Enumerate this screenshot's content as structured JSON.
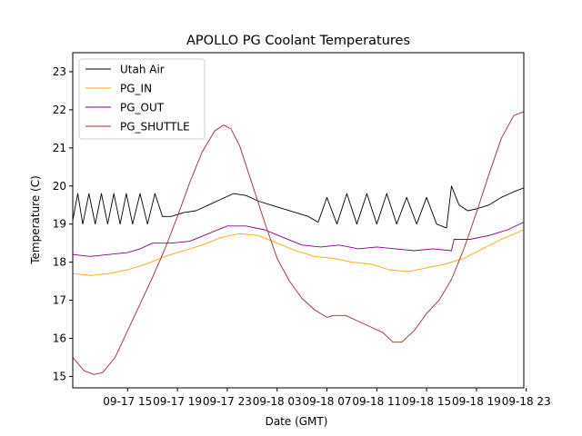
{
  "chart_data": {
    "type": "line",
    "title": "APOLLO PG Coolant Temperatures",
    "xlabel": "Date (GMT)",
    "ylabel": "Temperature (C)",
    "xlim_hours": [
      10.6,
      46.8
    ],
    "ylim": [
      14.7,
      23.5
    ],
    "x_ticks": [
      {
        "hour": 15,
        "label": "09-17 15"
      },
      {
        "hour": 19,
        "label": "09-17 19"
      },
      {
        "hour": 23,
        "label": "09-17 23"
      },
      {
        "hour": 27,
        "label": "09-18 03"
      },
      {
        "hour": 31,
        "label": "09-18 07"
      },
      {
        "hour": 35,
        "label": "09-18 11"
      },
      {
        "hour": 39,
        "label": "09-18 15"
      },
      {
        "hour": 43,
        "label": "09-18 19"
      },
      {
        "hour": 47,
        "label": "09-18 23"
      }
    ],
    "y_ticks": [
      15,
      16,
      17,
      18,
      19,
      20,
      21,
      22,
      23
    ],
    "grid": false,
    "legend_position": "top-left",
    "x_unit_note": "hours since 09-17 00:00 GMT",
    "series": [
      {
        "name": "Utah Air",
        "color": "#000000",
        "x": [
          10.6,
          11.0,
          11.4,
          11.9,
          12.4,
          12.9,
          13.4,
          13.9,
          14.4,
          14.9,
          15.4,
          16.0,
          16.6,
          17.2,
          17.8,
          18.5,
          19.5,
          20.5,
          21.5,
          22.5,
          23.5,
          24.5,
          25.5,
          26.5,
          27.5,
          28.5,
          29.5,
          30.3,
          31.0,
          31.8,
          32.6,
          33.4,
          34.2,
          35.0,
          35.8,
          36.6,
          37.4,
          38.2,
          39.0,
          39.8,
          40.6,
          41.0,
          41.6,
          42.3,
          43.0,
          44.0,
          45.0,
          46.0,
          46.8
        ],
        "y": [
          19.1,
          19.8,
          19.0,
          19.8,
          19.0,
          19.8,
          19.0,
          19.8,
          19.0,
          19.8,
          19.0,
          19.8,
          19.0,
          19.8,
          19.2,
          19.2,
          19.3,
          19.35,
          19.5,
          19.65,
          19.8,
          19.75,
          19.6,
          19.5,
          19.4,
          19.3,
          19.2,
          19.05,
          19.7,
          19.0,
          19.8,
          19.0,
          19.8,
          19.0,
          19.8,
          19.0,
          19.7,
          19.0,
          19.7,
          19.0,
          18.9,
          20.0,
          19.5,
          19.35,
          19.4,
          19.5,
          19.7,
          19.85,
          19.95
        ]
      },
      {
        "name": "PG_IN",
        "color": "#ffa500",
        "x": [
          10.6,
          12.0,
          13.5,
          15.0,
          16.5,
          18.0,
          19.5,
          21.0,
          22.5,
          24.0,
          25.5,
          27.0,
          28.5,
          30.0,
          31.5,
          33.0,
          34.5,
          36.0,
          37.5,
          39.0,
          40.5,
          42.0,
          43.5,
          45.0,
          46.8
        ],
        "y": [
          17.7,
          17.65,
          17.7,
          17.8,
          17.95,
          18.15,
          18.3,
          18.45,
          18.65,
          18.75,
          18.7,
          18.5,
          18.3,
          18.15,
          18.1,
          18.0,
          17.95,
          17.8,
          17.75,
          17.85,
          17.95,
          18.1,
          18.35,
          18.6,
          18.85
        ]
      },
      {
        "name": "PG_OUT",
        "color": "#800080",
        "x": [
          10.6,
          12.0,
          13.5,
          15.0,
          16.0,
          17.0,
          18.5,
          20.0,
          21.5,
          23.0,
          24.5,
          26.0,
          27.5,
          29.0,
          30.5,
          32.0,
          33.5,
          35.0,
          36.5,
          38.0,
          39.5,
          41.0,
          41.2,
          42.5,
          44.0,
          45.5,
          46.8
        ],
        "y": [
          18.2,
          18.15,
          18.2,
          18.25,
          18.35,
          18.5,
          18.5,
          18.55,
          18.75,
          18.95,
          18.95,
          18.85,
          18.65,
          18.45,
          18.4,
          18.45,
          18.35,
          18.4,
          18.35,
          18.3,
          18.35,
          18.3,
          18.6,
          18.6,
          18.7,
          18.85,
          19.05
        ]
      },
      {
        "name": "PG_SHUTTLE",
        "color": "#a52a2a",
        "x": [
          10.6,
          11.5,
          12.3,
          13.0,
          14.0,
          15.0,
          16.0,
          17.0,
          18.0,
          19.0,
          20.0,
          21.0,
          22.0,
          22.7,
          23.3,
          24.0,
          25.0,
          26.0,
          27.0,
          28.0,
          29.0,
          30.0,
          31.0,
          31.5,
          32.5,
          33.5,
          34.5,
          35.5,
          36.3,
          37.0,
          38.0,
          39.0,
          40.0,
          41.0,
          42.0,
          43.0,
          44.0,
          45.0,
          46.0,
          46.8
        ],
        "y": [
          15.5,
          15.15,
          15.05,
          15.1,
          15.5,
          16.2,
          16.9,
          17.6,
          18.35,
          19.2,
          20.1,
          20.9,
          21.45,
          21.6,
          21.5,
          21.05,
          20.05,
          19.05,
          18.1,
          17.5,
          17.05,
          16.75,
          16.55,
          16.6,
          16.6,
          16.45,
          16.3,
          16.15,
          15.9,
          15.9,
          16.2,
          16.65,
          17.0,
          17.55,
          18.35,
          19.3,
          20.3,
          21.25,
          21.85,
          21.95
        ]
      }
    ]
  }
}
